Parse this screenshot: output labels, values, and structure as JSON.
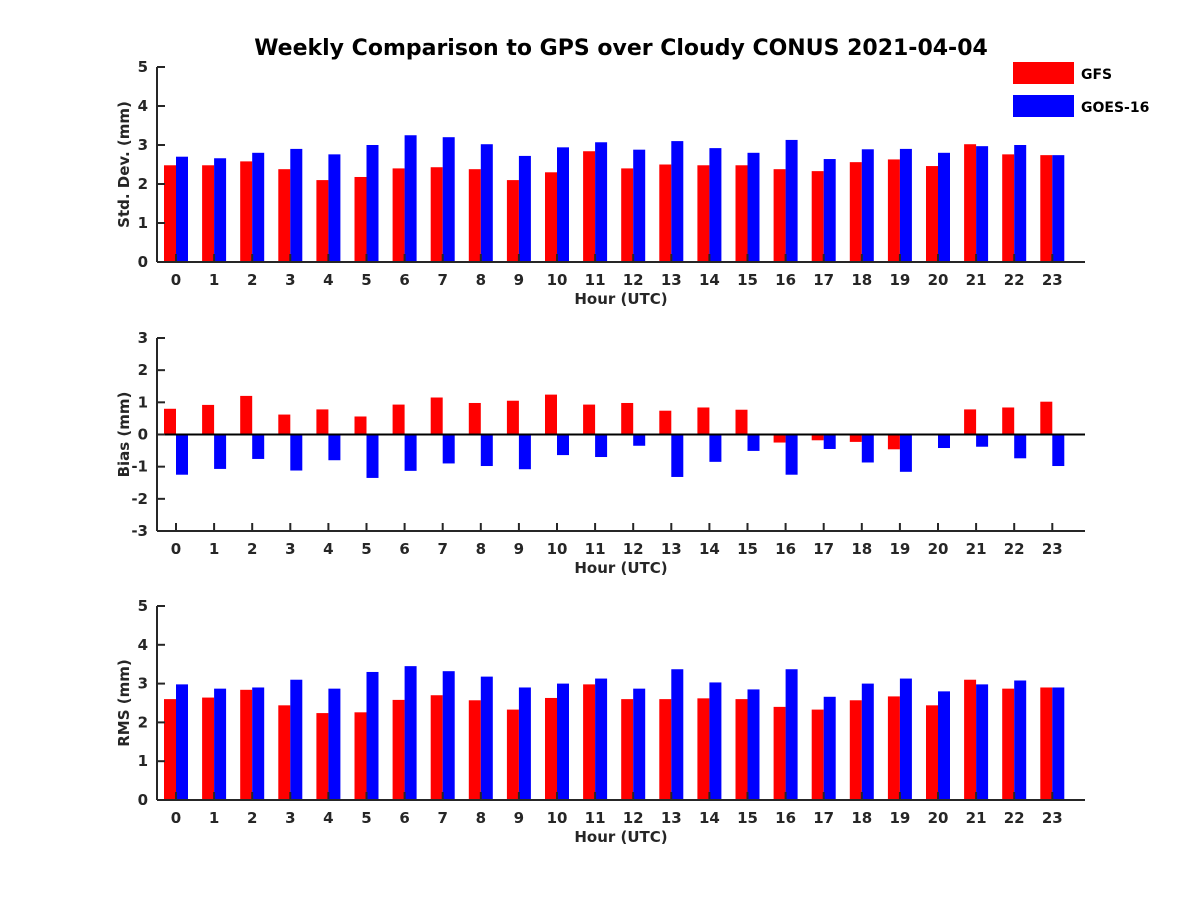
{
  "title": "Weekly Comparison to GPS over Cloudy CONUS 2021-04-04",
  "legend": {
    "placement": "top-right",
    "items": [
      {
        "label": "GFS",
        "color": "#ff0000"
      },
      {
        "label": "GOES-16",
        "color": "#0000ff"
      }
    ]
  },
  "chart_data": [
    {
      "type": "bar",
      "xlabel": "Hour (UTC)",
      "ylabel": "Std. Dev. (mm)",
      "ylim": [
        0,
        5
      ],
      "yticks": [
        "0",
        "1",
        "2",
        "3",
        "4",
        "5"
      ],
      "categories": [
        "0",
        "1",
        "2",
        "3",
        "4",
        "5",
        "6",
        "7",
        "8",
        "9",
        "10",
        "11",
        "12",
        "13",
        "14",
        "15",
        "16",
        "17",
        "18",
        "19",
        "20",
        "21",
        "22",
        "23"
      ],
      "series": [
        {
          "name": "GFS",
          "color": "#ff0000",
          "values": [
            2.48,
            2.48,
            2.58,
            2.38,
            2.1,
            2.18,
            2.4,
            2.43,
            2.38,
            2.1,
            2.3,
            2.84,
            2.4,
            2.5,
            2.48,
            2.48,
            2.38,
            2.33,
            2.56,
            2.63,
            2.46,
            3.02,
            2.76,
            2.74
          ]
        },
        {
          "name": "GOES-16",
          "color": "#0000ff",
          "values": [
            2.7,
            2.66,
            2.8,
            2.9,
            2.76,
            3.0,
            3.25,
            3.2,
            3.02,
            2.72,
            2.94,
            3.07,
            2.88,
            3.1,
            2.92,
            2.8,
            3.13,
            2.64,
            2.89,
            2.9,
            2.8,
            2.97,
            3.0,
            2.74
          ]
        }
      ]
    },
    {
      "type": "bar",
      "xlabel": "Hour (UTC)",
      "ylabel": "Bias (mm)",
      "ylim": [
        -3,
        3
      ],
      "yticks": [
        "-3",
        "-2",
        "-1",
        "0",
        "1",
        "2",
        "3"
      ],
      "zero_line": true,
      "categories": [
        "0",
        "1",
        "2",
        "3",
        "4",
        "5",
        "6",
        "7",
        "8",
        "9",
        "10",
        "11",
        "12",
        "13",
        "14",
        "15",
        "16",
        "17",
        "18",
        "19",
        "20",
        "21",
        "22",
        "23"
      ],
      "series": [
        {
          "name": "GFS",
          "color": "#ff0000",
          "values": [
            0.8,
            0.92,
            1.2,
            0.62,
            0.78,
            0.56,
            0.93,
            1.15,
            0.98,
            1.05,
            1.24,
            0.93,
            0.98,
            0.74,
            0.84,
            0.77,
            -0.25,
            -0.18,
            -0.23,
            -0.46,
            0.02,
            0.78,
            0.84,
            1.02
          ]
        },
        {
          "name": "GOES-16",
          "color": "#0000ff",
          "values": [
            -1.25,
            -1.07,
            -0.76,
            -1.12,
            -0.8,
            -1.35,
            -1.13,
            -0.9,
            -0.98,
            -1.08,
            -0.64,
            -0.7,
            -0.35,
            -1.32,
            -0.85,
            -0.51,
            -1.25,
            -0.45,
            -0.87,
            -1.16,
            -0.42,
            -0.38,
            -0.74,
            -0.98
          ]
        }
      ]
    },
    {
      "type": "bar",
      "xlabel": "Hour (UTC)",
      "ylabel": "RMS (mm)",
      "ylim": [
        0,
        5
      ],
      "yticks": [
        "0",
        "1",
        "2",
        "3",
        "4",
        "5"
      ],
      "categories": [
        "0",
        "1",
        "2",
        "3",
        "4",
        "5",
        "6",
        "7",
        "8",
        "9",
        "10",
        "11",
        "12",
        "13",
        "14",
        "15",
        "16",
        "17",
        "18",
        "19",
        "20",
        "21",
        "22",
        "23"
      ],
      "series": [
        {
          "name": "GFS",
          "color": "#ff0000",
          "values": [
            2.6,
            2.64,
            2.84,
            2.44,
            2.24,
            2.26,
            2.58,
            2.7,
            2.57,
            2.33,
            2.63,
            2.98,
            2.6,
            2.6,
            2.62,
            2.6,
            2.4,
            2.33,
            2.57,
            2.67,
            2.44,
            3.1,
            2.87,
            2.9
          ]
        },
        {
          "name": "GOES-16",
          "color": "#0000ff",
          "values": [
            2.98,
            2.87,
            2.9,
            3.1,
            2.87,
            3.3,
            3.45,
            3.32,
            3.18,
            2.9,
            3.0,
            3.13,
            2.87,
            3.37,
            3.03,
            2.85,
            3.37,
            2.66,
            3.0,
            3.13,
            2.8,
            2.98,
            3.08,
            2.9
          ]
        }
      ]
    }
  ]
}
